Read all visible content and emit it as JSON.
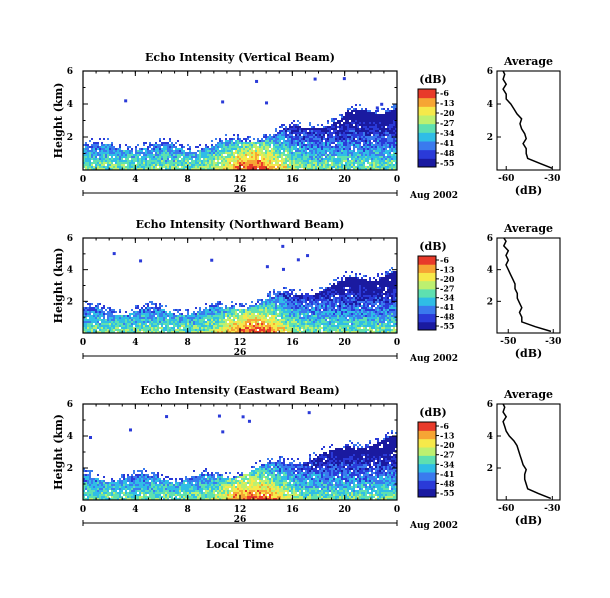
{
  "colorbar": {
    "unit_label": "(dB)",
    "tick_labels": [
      "-6",
      "-13",
      "-20",
      "-27",
      "-34",
      "-41",
      "-48",
      "-55"
    ],
    "range": [
      -55,
      -6
    ],
    "colors": [
      "#1a1aa0",
      "#2a3ad8",
      "#3a7aee",
      "#2fbde6",
      "#5ee0b0",
      "#bdf070",
      "#f6e94a",
      "#f6a534",
      "#e83a2a"
    ]
  },
  "xaxis": {
    "hour_ticks": [
      "0",
      "4",
      "8",
      "12",
      "16",
      "20",
      "0"
    ],
    "hour_values": [
      0,
      4,
      8,
      12,
      16,
      20,
      24
    ],
    "day_label": "26",
    "month_label": "Aug 2002",
    "xlabel": "Local Time"
  },
  "chart_data": [
    {
      "type": "heatmap",
      "name": "vertical",
      "title": "Echo Intensity (Vertical Beam)",
      "ylabel": "Height (km)",
      "yticks": [
        "6",
        "4",
        "2"
      ],
      "ytick_values": [
        6,
        4,
        2
      ],
      "ylim": [
        0,
        6
      ],
      "xlim": [
        0,
        24
      ],
      "profile": {
        "title": "Average",
        "xlabel": "(dB)",
        "xticks": [
          "-60",
          "-30"
        ],
        "xtick_values": [
          -60,
          -30
        ],
        "yticks": [
          "6",
          "4",
          "2"
        ],
        "ytick_values": [
          6,
          4,
          2
        ],
        "xlim": [
          -66,
          -25
        ],
        "ylim": [
          0,
          6
        ],
        "heights": [
          0.1,
          0.4,
          0.7,
          1.0,
          1.3,
          1.6,
          1.9,
          2.2,
          2.5,
          2.8,
          3.1,
          3.4,
          3.7,
          4.0,
          4.3,
          4.6,
          4.9,
          5.2,
          5.5,
          5.8,
          6.0
        ],
        "db": [
          -30,
          -38,
          -46,
          -47,
          -47,
          -49,
          -47,
          -48,
          -50,
          -51,
          -50,
          -53,
          -55,
          -57,
          -60,
          -60,
          -62,
          -60,
          -62,
          -61,
          -62
        ]
      }
    },
    {
      "type": "heatmap",
      "name": "northward",
      "title": "Echo Intensity (Northward Beam)",
      "ylabel": "Height (km)",
      "yticks": [
        "6",
        "4",
        "2"
      ],
      "ytick_values": [
        6,
        4,
        2
      ],
      "ylim": [
        0,
        6
      ],
      "xlim": [
        0,
        24
      ],
      "profile": {
        "title": "Average",
        "xlabel": "(dB)",
        "xticks": [
          "-50",
          "-30"
        ],
        "xtick_values": [
          -50,
          -30
        ],
        "yticks": [
          "6",
          "4",
          "2"
        ],
        "ytick_values": [
          6,
          4,
          2
        ],
        "xlim": [
          -55,
          -27
        ],
        "ylim": [
          0,
          6
        ],
        "heights": [
          0.1,
          0.4,
          0.7,
          1.0,
          1.3,
          1.6,
          1.9,
          2.2,
          2.5,
          2.8,
          3.1,
          3.4,
          3.7,
          4.0,
          4.3,
          4.6,
          4.9,
          5.2,
          5.5,
          5.8,
          6.0
        ],
        "db": [
          -31,
          -38,
          -44,
          -44,
          -45,
          -44,
          -45,
          -46,
          -46,
          -47,
          -47,
          -48,
          -49,
          -50,
          -51,
          -50,
          -51,
          -50,
          -52,
          -51,
          -52
        ]
      }
    },
    {
      "type": "heatmap",
      "name": "eastward",
      "title": "Echo Intensity (Eastward Beam)",
      "ylabel": "Height (km)",
      "yticks": [
        "6",
        "4",
        "2"
      ],
      "ytick_values": [
        6,
        4,
        2
      ],
      "ylim": [
        0,
        6
      ],
      "xlim": [
        0,
        24
      ],
      "profile": {
        "title": "Average",
        "xlabel": "(dB)",
        "xticks": [
          "-60",
          "-30"
        ],
        "xtick_values": [
          -60,
          -30
        ],
        "yticks": [
          "6",
          "4",
          "2"
        ],
        "ytick_values": [
          6,
          4,
          2
        ],
        "xlim": [
          -66,
          -25
        ],
        "ylim": [
          0,
          6
        ],
        "heights": [
          0.1,
          0.4,
          0.7,
          1.0,
          1.3,
          1.6,
          1.9,
          2.2,
          2.5,
          2.8,
          3.1,
          3.4,
          3.7,
          4.0,
          4.3,
          4.6,
          4.9,
          5.2,
          5.5,
          5.8,
          6.0
        ],
        "db": [
          -31,
          -39,
          -46,
          -47,
          -48,
          -48,
          -47,
          -49,
          -50,
          -51,
          -52,
          -53,
          -55,
          -58,
          -60,
          -61,
          -62,
          -60,
          -62,
          -61,
          -62
        ]
      }
    }
  ]
}
